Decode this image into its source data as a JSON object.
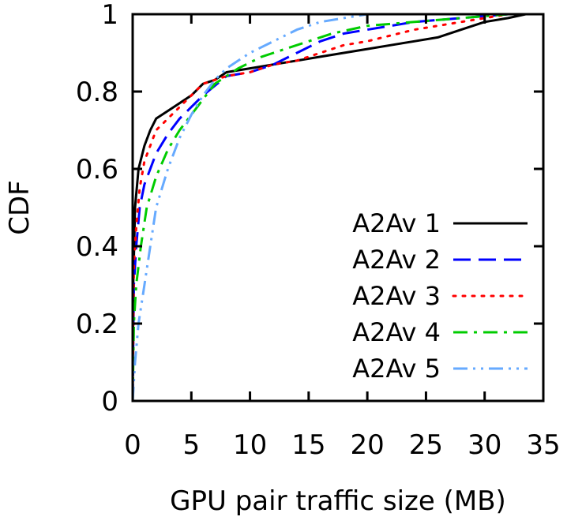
{
  "chart_data": {
    "type": "line",
    "title": "",
    "xlabel": "GPU pair traffic size (MB)",
    "ylabel": "CDF",
    "xlim": [
      0,
      35
    ],
    "ylim": [
      0,
      1
    ],
    "x_ticks": [
      "0",
      "5",
      "10",
      "15",
      "20",
      "25",
      "30",
      "35"
    ],
    "y_ticks": [
      "0",
      "0.2",
      "0.4",
      "0.6",
      "0.8",
      "1"
    ],
    "grid": false,
    "legend_position": "bottom-right",
    "series": [
      {
        "name": "A2Av 1",
        "color": "#000000",
        "dash": "solid",
        "points": [
          [
            0,
            0
          ],
          [
            0.05,
            0.3
          ],
          [
            0.2,
            0.5
          ],
          [
            0.5,
            0.6
          ],
          [
            1,
            0.66
          ],
          [
            1.5,
            0.7
          ],
          [
            2,
            0.73
          ],
          [
            3,
            0.75
          ],
          [
            4,
            0.77
          ],
          [
            5,
            0.79
          ],
          [
            6,
            0.82
          ],
          [
            7,
            0.83
          ],
          [
            8,
            0.85
          ],
          [
            10,
            0.86
          ],
          [
            12,
            0.87
          ],
          [
            14,
            0.88
          ],
          [
            16,
            0.89
          ],
          [
            18,
            0.9
          ],
          [
            20,
            0.91
          ],
          [
            22,
            0.92
          ],
          [
            24,
            0.93
          ],
          [
            26,
            0.94
          ],
          [
            28,
            0.96
          ],
          [
            30,
            0.98
          ],
          [
            32,
            0.99
          ],
          [
            33.5,
            1.0
          ]
        ]
      },
      {
        "name": "A2Av 2",
        "color": "#0000ff",
        "dash": "long-dash",
        "points": [
          [
            0,
            0
          ],
          [
            0.1,
            0.3
          ],
          [
            0.3,
            0.4
          ],
          [
            0.6,
            0.5
          ],
          [
            1,
            0.56
          ],
          [
            1.5,
            0.6
          ],
          [
            2,
            0.64
          ],
          [
            3,
            0.69
          ],
          [
            4,
            0.73
          ],
          [
            5,
            0.76
          ],
          [
            6,
            0.79
          ],
          [
            8,
            0.84
          ],
          [
            10,
            0.85
          ],
          [
            12,
            0.87
          ],
          [
            14,
            0.9
          ],
          [
            16,
            0.93
          ],
          [
            18,
            0.95
          ],
          [
            20,
            0.96
          ],
          [
            24,
            0.98
          ],
          [
            28,
            0.99
          ],
          [
            32,
            1.0
          ]
        ]
      },
      {
        "name": "A2Av 3",
        "color": "#ff0000",
        "dash": "dot",
        "points": [
          [
            0,
            0
          ],
          [
            0.1,
            0.35
          ],
          [
            0.3,
            0.45
          ],
          [
            0.6,
            0.55
          ],
          [
            1,
            0.62
          ],
          [
            1.5,
            0.66
          ],
          [
            2,
            0.7
          ],
          [
            3,
            0.73
          ],
          [
            4,
            0.76
          ],
          [
            5,
            0.79
          ],
          [
            6,
            0.82
          ],
          [
            8,
            0.84
          ],
          [
            10,
            0.85
          ],
          [
            12,
            0.87
          ],
          [
            14,
            0.88
          ],
          [
            16,
            0.9
          ],
          [
            18,
            0.92
          ],
          [
            20,
            0.93
          ],
          [
            24,
            0.96
          ],
          [
            28,
            0.98
          ],
          [
            32,
            1.0
          ]
        ]
      },
      {
        "name": "A2Av 4",
        "color": "#00cc00",
        "dash": "dash-dot",
        "points": [
          [
            0,
            0
          ],
          [
            0.1,
            0.2
          ],
          [
            0.3,
            0.3
          ],
          [
            0.7,
            0.4
          ],
          [
            1.2,
            0.5
          ],
          [
            2,
            0.58
          ],
          [
            3,
            0.65
          ],
          [
            4,
            0.7
          ],
          [
            5,
            0.74
          ],
          [
            6,
            0.78
          ],
          [
            7,
            0.82
          ],
          [
            9,
            0.86
          ],
          [
            11,
            0.89
          ],
          [
            13,
            0.91
          ],
          [
            15,
            0.93
          ],
          [
            17,
            0.95
          ],
          [
            20,
            0.97
          ],
          [
            24,
            0.98
          ],
          [
            28,
            0.99
          ],
          [
            32,
            1.0
          ]
        ]
      },
      {
        "name": "A2Av 5",
        "color": "#66aaff",
        "dash": "dash-dot-dot",
        "points": [
          [
            0,
            0
          ],
          [
            0.2,
            0.1
          ],
          [
            0.5,
            0.2
          ],
          [
            1,
            0.3
          ],
          [
            1.5,
            0.4
          ],
          [
            2,
            0.5
          ],
          [
            3,
            0.6
          ],
          [
            4,
            0.68
          ],
          [
            5,
            0.74
          ],
          [
            6,
            0.79
          ],
          [
            7,
            0.83
          ],
          [
            8,
            0.86
          ],
          [
            9,
            0.88
          ],
          [
            10,
            0.9
          ],
          [
            12,
            0.93
          ],
          [
            14,
            0.96
          ],
          [
            16,
            0.98
          ],
          [
            18,
            0.99
          ],
          [
            20,
            1.0
          ]
        ]
      }
    ]
  }
}
